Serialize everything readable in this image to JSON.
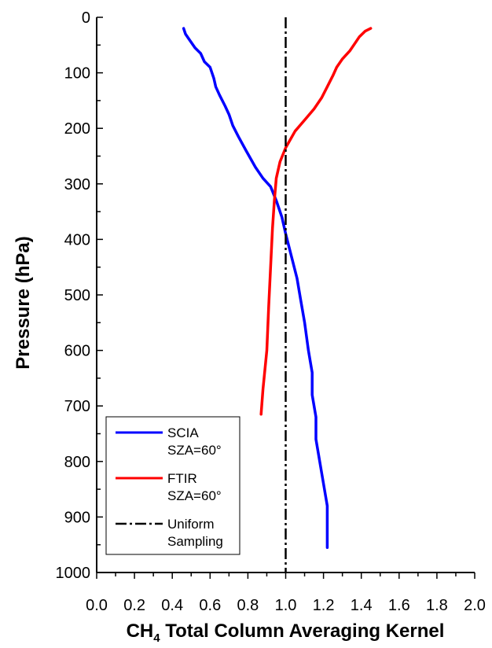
{
  "chart_data": {
    "type": "line",
    "xlabel": {
      "main": "CH",
      "sub": "4",
      "rest": " Total Column Averaging Kernel"
    },
    "ylabel": "Pressure (hPa)",
    "xlim": [
      0,
      2.0
    ],
    "ylim": [
      1000,
      0
    ],
    "y_inverted": true,
    "x_ticks": [
      "0.0",
      "0.2",
      "0.4",
      "0.6",
      "0.8",
      "1.0",
      "1.2",
      "1.4",
      "1.6",
      "1.8",
      "2.0"
    ],
    "y_ticks": [
      "0",
      "100",
      "200",
      "300",
      "400",
      "500",
      "600",
      "700",
      "800",
      "900",
      "1000"
    ],
    "grid": false,
    "legend_position": "bottom-left",
    "series": [
      {
        "name": "SCIA",
        "name_line2": "SZA=60°",
        "color": "#0000ff",
        "style": "solid",
        "points": [
          [
            0.46,
            20
          ],
          [
            0.47,
            30
          ],
          [
            0.49,
            40
          ],
          [
            0.52,
            55
          ],
          [
            0.55,
            65
          ],
          [
            0.57,
            80
          ],
          [
            0.6,
            90
          ],
          [
            0.62,
            110
          ],
          [
            0.63,
            125
          ],
          [
            0.65,
            140
          ],
          [
            0.68,
            160
          ],
          [
            0.7,
            175
          ],
          [
            0.72,
            195
          ],
          [
            0.75,
            215
          ],
          [
            0.79,
            240
          ],
          [
            0.84,
            270
          ],
          [
            0.88,
            290
          ],
          [
            0.92,
            305
          ],
          [
            0.95,
            330
          ],
          [
            0.98,
            360
          ],
          [
            1.0,
            390
          ],
          [
            1.03,
            430
          ],
          [
            1.06,
            470
          ],
          [
            1.08,
            510
          ],
          [
            1.1,
            550
          ],
          [
            1.12,
            600
          ],
          [
            1.14,
            640
          ],
          [
            1.14,
            680
          ],
          [
            1.16,
            720
          ],
          [
            1.16,
            760
          ],
          [
            1.18,
            800
          ],
          [
            1.2,
            840
          ],
          [
            1.22,
            880
          ],
          [
            1.22,
            900
          ],
          [
            1.22,
            955
          ]
        ]
      },
      {
        "name": "FTIR",
        "name_line2": "SZA=60°",
        "color": "#ff0000",
        "style": "solid",
        "points": [
          [
            1.45,
            20
          ],
          [
            1.42,
            25
          ],
          [
            1.39,
            35
          ],
          [
            1.37,
            45
          ],
          [
            1.34,
            60
          ],
          [
            1.3,
            75
          ],
          [
            1.27,
            90
          ],
          [
            1.25,
            105
          ],
          [
            1.22,
            125
          ],
          [
            1.19,
            145
          ],
          [
            1.15,
            165
          ],
          [
            1.1,
            185
          ],
          [
            1.05,
            205
          ],
          [
            1.0,
            235
          ],
          [
            0.97,
            260
          ],
          [
            0.95,
            290
          ],
          [
            0.94,
            330
          ],
          [
            0.93,
            380
          ],
          [
            0.92,
            450
          ],
          [
            0.91,
            520
          ],
          [
            0.9,
            600
          ],
          [
            0.88,
            670
          ],
          [
            0.87,
            715
          ]
        ]
      },
      {
        "name": "Uniform",
        "name_line2": "Sampling",
        "color": "#000000",
        "style": "dashdot",
        "points": [
          [
            1.0,
            0
          ],
          [
            1.0,
            1000
          ]
        ]
      }
    ]
  }
}
